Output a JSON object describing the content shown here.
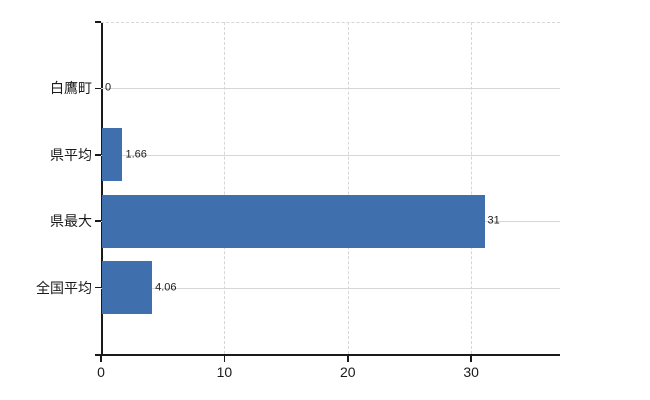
{
  "chart_data": {
    "type": "bar",
    "orientation": "horizontal",
    "title": "",
    "categories": [
      "白鷹町",
      "県平均",
      "県最大",
      "全国平均"
    ],
    "values": [
      0,
      1.66,
      31,
      4.06
    ],
    "value_labels": [
      "0",
      "1.66",
      "31",
      "4.06"
    ],
    "x_ticks": [
      0,
      10,
      20,
      30
    ],
    "x_tick_labels": [
      "0",
      "10",
      "20",
      "30"
    ],
    "xlim": [
      0,
      37.2
    ],
    "xlabel": "",
    "ylabel": "",
    "grid": true,
    "gridline_style": "vertical-dashed, category-solid, top-dashed",
    "legend": false
  },
  "colors": {
    "bar": "#3f6fad",
    "grid": "#d6d6d6",
    "axis": "#1a1a1a",
    "text": "#1a1a1a",
    "background": "#ffffff"
  }
}
